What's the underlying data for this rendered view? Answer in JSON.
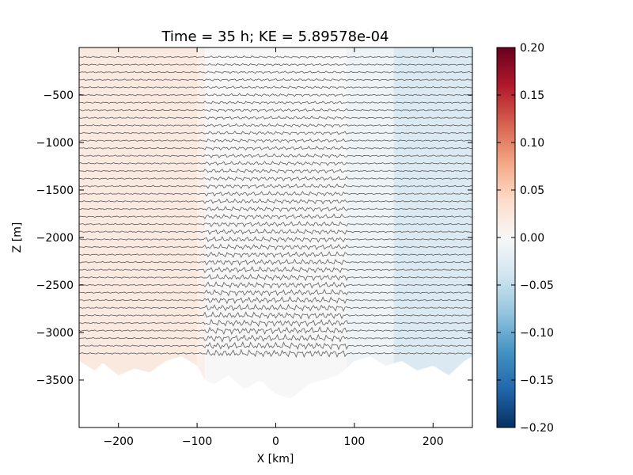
{
  "chart_data": {
    "type": "heatmap",
    "title": "Time = 35 h; KE = 5.89578e-04",
    "xlabel": "X [km]",
    "ylabel": "Z [m]",
    "xlim": [
      -250,
      250
    ],
    "ylim": [
      -4000,
      0
    ],
    "xticks": [
      -200,
      -100,
      0,
      100,
      200
    ],
    "xtick_labels": [
      "−200",
      "−100",
      "0",
      "100",
      "200"
    ],
    "yticks": [
      -500,
      -1000,
      -1500,
      -2000,
      -2500,
      -3000,
      -3500
    ],
    "ytick_labels": [
      "−500",
      "−1000",
      "−1500",
      "−2000",
      "−2500",
      "−3000",
      "−3500"
    ],
    "colorbar": {
      "range": [
        -0.2,
        0.2
      ],
      "ticks": [
        0.2,
        0.15,
        0.1,
        0.05,
        0.0,
        -0.05,
        -0.1,
        -0.15,
        -0.2
      ],
      "tick_labels": [
        "0.20",
        "0.15",
        "0.10",
        "0.05",
        "0.00",
        "−0.05",
        "−0.10",
        "−0.15",
        "−0.20"
      ],
      "colormap": "RdBu_r",
      "colors": [
        "#053061",
        "#2166ac",
        "#4393c3",
        "#92c5de",
        "#d1e5f0",
        "#f7f7f7",
        "#fddbc7",
        "#f4a582",
        "#d6604d",
        "#b2182b",
        "#67001f"
      ]
    },
    "field_bands": [
      {
        "x0": -250,
        "x1": -100,
        "value": 0.02
      },
      {
        "x0": -100,
        "x1": -90,
        "value": 0.01
      },
      {
        "x0": -90,
        "x1": 90,
        "value": 0.0
      },
      {
        "x0": 90,
        "x1": 150,
        "value": -0.01
      },
      {
        "x0": 150,
        "x1": 250,
        "value": -0.03
      }
    ],
    "bottom_depth": [
      [
        -250,
        -3300
      ],
      [
        -240,
        -3350
      ],
      [
        -230,
        -3400
      ],
      [
        -220,
        -3320
      ],
      [
        -200,
        -3450
      ],
      [
        -180,
        -3380
      ],
      [
        -160,
        -3420
      ],
      [
        -140,
        -3300
      ],
      [
        -120,
        -3250
      ],
      [
        -100,
        -3350
      ],
      [
        -90,
        -3500
      ],
      [
        -80,
        -3550
      ],
      [
        -60,
        -3450
      ],
      [
        -40,
        -3600
      ],
      [
        -20,
        -3500
      ],
      [
        0,
        -3650
      ],
      [
        20,
        -3700
      ],
      [
        40,
        -3550
      ],
      [
        60,
        -3500
      ],
      [
        80,
        -3450
      ],
      [
        100,
        -3300
      ],
      [
        120,
        -3250
      ],
      [
        140,
        -3350
      ],
      [
        160,
        -3300
      ],
      [
        180,
        -3400
      ],
      [
        200,
        -3350
      ],
      [
        220,
        -3450
      ],
      [
        240,
        -3300
      ],
      [
        250,
        -3250
      ]
    ],
    "isopycnals": {
      "count": 40,
      "top_depth": -100,
      "spacing": 80,
      "quiet_amplitude": 8,
      "active_amplitude": 28,
      "active_x_range": [
        -90,
        90
      ]
    },
    "series": []
  }
}
